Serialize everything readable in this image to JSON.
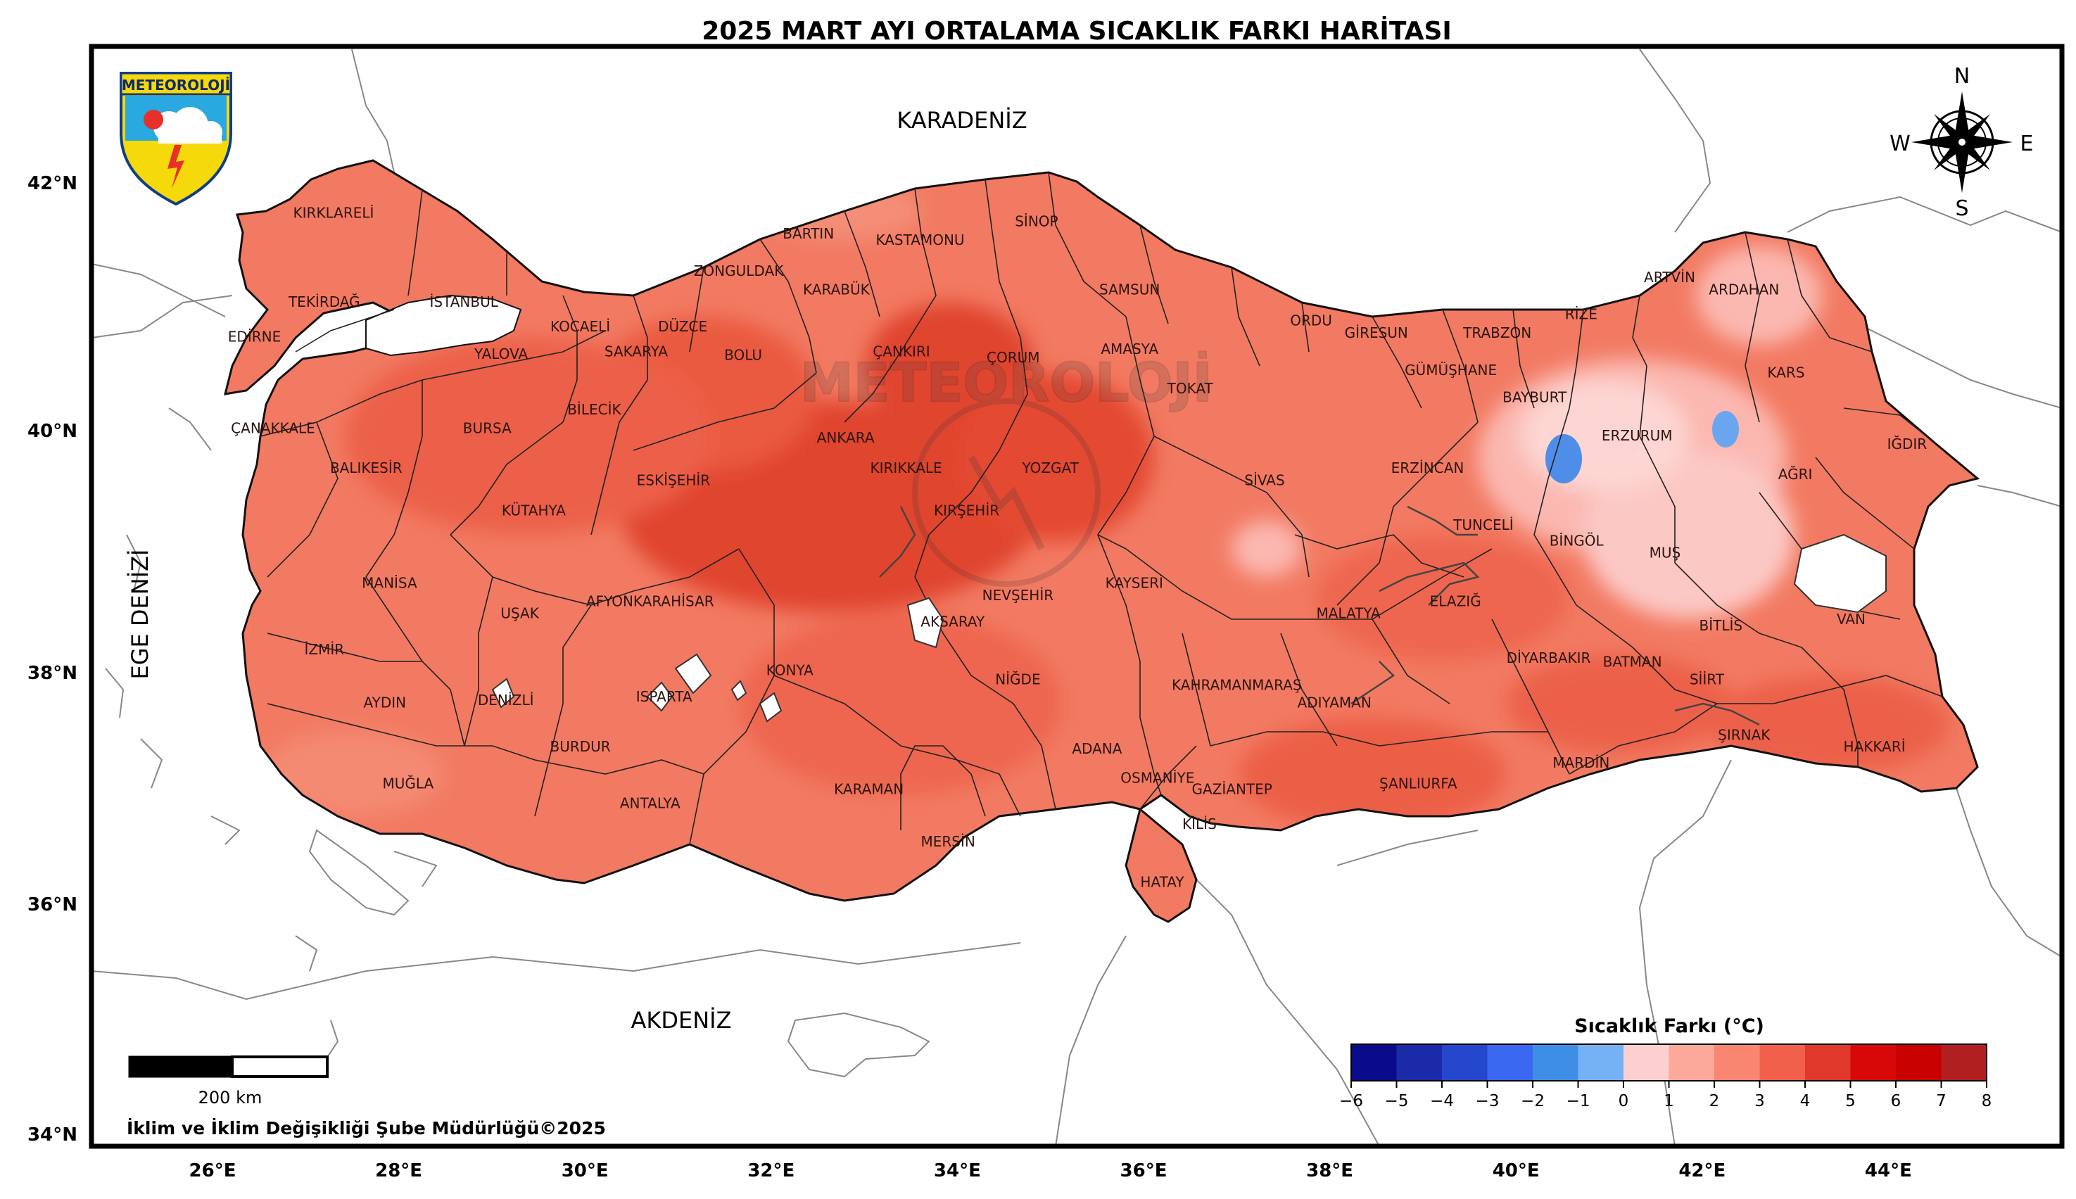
{
  "title": "2025 MART AYI ORTALAMA SICAKLIK FARKI HARİTASI",
  "logo_text": "METEOROLOJİ",
  "watermark_text": "METEOROLOJİ",
  "compass": {
    "n": "N",
    "s": "S",
    "e": "E",
    "w": "W"
  },
  "seas": {
    "black_sea": "KARADENİZ",
    "mediterranean": "AKDENİZ",
    "aegean": "EGE DENİZİ"
  },
  "axes": {
    "lat_ticks": [
      "42°N",
      "40°N",
      "38°N",
      "36°N",
      "34°N"
    ],
    "lon_ticks": [
      "26°E",
      "28°E",
      "30°E",
      "32°E",
      "34°E",
      "36°E",
      "38°E",
      "40°E",
      "42°E",
      "44°E"
    ]
  },
  "scale_bar": {
    "label": "200 km"
  },
  "credit": "İklim ve İklim Değişikliği Şube Müdürlüğü©2025",
  "legend": {
    "title": "Sıcaklık Farkı (°C)",
    "ticks": [
      "−6",
      "−5",
      "−4",
      "−3",
      "−2",
      "−1",
      "0",
      "1",
      "2",
      "3",
      "4",
      "5",
      "6",
      "7",
      "8"
    ],
    "colors": [
      "#0a0a8c",
      "#1a2aa8",
      "#2447cc",
      "#3a68f0",
      "#3f8ee6",
      "#74b2f5",
      "#fdd0d0",
      "#fca89a",
      "#f98670",
      "#f0604a",
      "#e0382a",
      "#d80808",
      "#c80000",
      "#b02020"
    ]
  },
  "provinces": [
    {
      "name": "KIRKLARELİ",
      "lon": 27.3,
      "lat": 41.72
    },
    {
      "name": "TEKİRDAĞ",
      "lon": 27.2,
      "lat": 41.0
    },
    {
      "name": "İSTANBUL",
      "lon": 28.7,
      "lat": 41.0
    },
    {
      "name": "EDİRNE",
      "lon": 26.45,
      "lat": 40.72
    },
    {
      "name": "KOCAELİ",
      "lon": 29.95,
      "lat": 40.8
    },
    {
      "name": "DÜZCE",
      "lon": 31.05,
      "lat": 40.8
    },
    {
      "name": "ZONGULDAK",
      "lon": 31.65,
      "lat": 41.25
    },
    {
      "name": "BARTIN",
      "lon": 32.4,
      "lat": 41.55
    },
    {
      "name": "KASTAMONU",
      "lon": 33.6,
      "lat": 41.5
    },
    {
      "name": "SİNOP",
      "lon": 34.85,
      "lat": 41.65
    },
    {
      "name": "KARABÜK",
      "lon": 32.7,
      "lat": 41.1
    },
    {
      "name": "SAMSUN",
      "lon": 35.85,
      "lat": 41.1
    },
    {
      "name": "SAKARYA",
      "lon": 30.55,
      "lat": 40.6
    },
    {
      "name": "YALOVA",
      "lon": 29.1,
      "lat": 40.58
    },
    {
      "name": "BOLU",
      "lon": 31.7,
      "lat": 40.57
    },
    {
      "name": "ÇANKIRI",
      "lon": 33.4,
      "lat": 40.6
    },
    {
      "name": "ÇORUM",
      "lon": 34.6,
      "lat": 40.55
    },
    {
      "name": "AMASYA",
      "lon": 35.85,
      "lat": 40.62
    },
    {
      "name": "TOKAT",
      "lon": 36.5,
      "lat": 40.3
    },
    {
      "name": "ORDU",
      "lon": 37.8,
      "lat": 40.85
    },
    {
      "name": "GİRESUN",
      "lon": 38.5,
      "lat": 40.75
    },
    {
      "name": "TRABZON",
      "lon": 39.8,
      "lat": 40.75
    },
    {
      "name": "RİZE",
      "lon": 40.7,
      "lat": 40.9
    },
    {
      "name": "ARTVİN",
      "lon": 41.65,
      "lat": 41.2
    },
    {
      "name": "ARDAHAN",
      "lon": 42.45,
      "lat": 41.1
    },
    {
      "name": "GÜMÜŞHANE",
      "lon": 39.3,
      "lat": 40.45
    },
    {
      "name": "KARS",
      "lon": 42.9,
      "lat": 40.43
    },
    {
      "name": "BAYBURT",
      "lon": 40.2,
      "lat": 40.23
    },
    {
      "name": "ERZURUM",
      "lon": 41.3,
      "lat": 39.92
    },
    {
      "name": "ÇANAKKALE",
      "lon": 26.65,
      "lat": 39.98
    },
    {
      "name": "BURSA",
      "lon": 28.95,
      "lat": 39.98
    },
    {
      "name": "BİLECİK",
      "lon": 30.1,
      "lat": 40.13
    },
    {
      "name": "ANKARA",
      "lon": 32.8,
      "lat": 39.9
    },
    {
      "name": "KIRIKKALE",
      "lon": 33.45,
      "lat": 39.65
    },
    {
      "name": "YOZGAT",
      "lon": 35.0,
      "lat": 39.65
    },
    {
      "name": "SİVAS",
      "lon": 37.3,
      "lat": 39.55
    },
    {
      "name": "ERZİNCAN",
      "lon": 39.05,
      "lat": 39.65
    },
    {
      "name": "IĞDIR",
      "lon": 44.2,
      "lat": 39.85
    },
    {
      "name": "AĞRI",
      "lon": 43.0,
      "lat": 39.6
    },
    {
      "name": "BALIKESİR",
      "lon": 27.65,
      "lat": 39.65
    },
    {
      "name": "ESKİŞEHİR",
      "lon": 30.95,
      "lat": 39.55
    },
    {
      "name": "KIRŞEHİR",
      "lon": 34.1,
      "lat": 39.3
    },
    {
      "name": "KÜTAHYA",
      "lon": 29.45,
      "lat": 39.3
    },
    {
      "name": "TUNCELİ",
      "lon": 39.65,
      "lat": 39.18
    },
    {
      "name": "BİNGÖL",
      "lon": 40.65,
      "lat": 39.05
    },
    {
      "name": "MUŞ",
      "lon": 41.6,
      "lat": 38.95
    },
    {
      "name": "KAYSERİ",
      "lon": 35.9,
      "lat": 38.7
    },
    {
      "name": "NEVŞEHİR",
      "lon": 34.65,
      "lat": 38.6
    },
    {
      "name": "MANİSA",
      "lon": 27.9,
      "lat": 38.7
    },
    {
      "name": "AFYONKARAHİSAR",
      "lon": 30.7,
      "lat": 38.55
    },
    {
      "name": "UŞAK",
      "lon": 29.3,
      "lat": 38.45
    },
    {
      "name": "ELAZIĞ",
      "lon": 39.35,
      "lat": 38.55
    },
    {
      "name": "MALATYA",
      "lon": 38.2,
      "lat": 38.45
    },
    {
      "name": "BİTLİS",
      "lon": 42.2,
      "lat": 38.35
    },
    {
      "name": "VAN",
      "lon": 43.6,
      "lat": 38.4
    },
    {
      "name": "AKSARAY",
      "lon": 33.95,
      "lat": 38.38
    },
    {
      "name": "İZMİR",
      "lon": 27.2,
      "lat": 38.15
    },
    {
      "name": "DİYARBAKIR",
      "lon": 40.35,
      "lat": 38.08
    },
    {
      "name": "BATMAN",
      "lon": 41.25,
      "lat": 38.05
    },
    {
      "name": "SİİRT",
      "lon": 42.05,
      "lat": 37.9
    },
    {
      "name": "NİĞDE",
      "lon": 34.65,
      "lat": 37.9
    },
    {
      "name": "KONYA",
      "lon": 32.2,
      "lat": 37.98
    },
    {
      "name": "KAHRAMANMARAŞ",
      "lon": 37.0,
      "lat": 37.85
    },
    {
      "name": "AYDIN",
      "lon": 27.85,
      "lat": 37.7
    },
    {
      "name": "DENİZLİ",
      "lon": 29.15,
      "lat": 37.72
    },
    {
      "name": "ISPARTA",
      "lon": 30.85,
      "lat": 37.75
    },
    {
      "name": "ADIYAMAN",
      "lon": 38.05,
      "lat": 37.7
    },
    {
      "name": "BURDUR",
      "lon": 29.95,
      "lat": 37.32
    },
    {
      "name": "ADANA",
      "lon": 35.5,
      "lat": 37.3
    },
    {
      "name": "ŞIRNAK",
      "lon": 42.45,
      "lat": 37.42
    },
    {
      "name": "HAKKARİ",
      "lon": 43.85,
      "lat": 37.32
    },
    {
      "name": "MARDİN",
      "lon": 40.7,
      "lat": 37.18
    },
    {
      "name": "MUĞLA",
      "lon": 28.1,
      "lat": 37.0
    },
    {
      "name": "OSMANİYE",
      "lon": 36.15,
      "lat": 37.05
    },
    {
      "name": "ŞANLIURFA",
      "lon": 38.95,
      "lat": 37.0
    },
    {
      "name": "GAZİANTEP",
      "lon": 36.95,
      "lat": 36.95
    },
    {
      "name": "KARAMAN",
      "lon": 33.05,
      "lat": 36.95
    },
    {
      "name": "ANTALYA",
      "lon": 30.7,
      "lat": 36.83
    },
    {
      "name": "KİLİS",
      "lon": 36.6,
      "lat": 36.65
    },
    {
      "name": "MERSİN",
      "lon": 33.9,
      "lat": 36.5
    },
    {
      "name": "HATAY",
      "lon": 36.2,
      "lat": 36.15
    }
  ]
}
